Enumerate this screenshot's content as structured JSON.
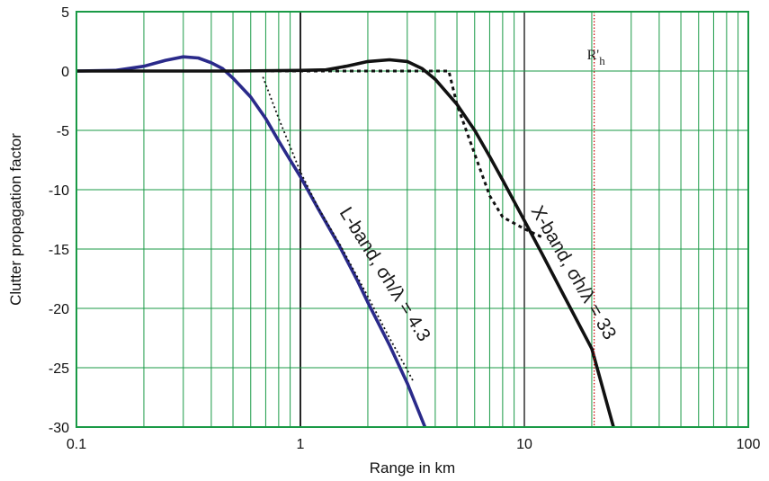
{
  "chart_data": {
    "type": "line",
    "title": "",
    "xlabel": "Range in km",
    "ylabel": "Clutter propagation factor",
    "x_scale": "log",
    "xlim": [
      0.1,
      100
    ],
    "ylim": [
      -30,
      5
    ],
    "x_ticks": [
      "0.1",
      "1",
      "10",
      "100"
    ],
    "y_ticks": [
      "5",
      "0",
      "-5",
      "-10",
      "-15",
      "-20",
      "-25",
      "-30"
    ],
    "grid": true,
    "colors": {
      "grid": "#1a9a46",
      "frame": "#1a9a46",
      "l_band": "#2a2a8a",
      "x_band": "#111111",
      "asymptote": "#111111",
      "marker": "#cc0000"
    },
    "annotations": {
      "marker_label": "R'h",
      "marker_x": 20.5,
      "l_band_label": "L-band, σh/λ = 4.3",
      "x_band_label": "X-band, σh/λ = 33"
    },
    "series": [
      {
        "style": "solid",
        "color": "#2a2a8a",
        "x": [
          0.1,
          0.15,
          0.2,
          0.25,
          0.3,
          0.35,
          0.4,
          0.45,
          0.5,
          0.6,
          0.7,
          0.8,
          0.9,
          1.0,
          1.2,
          1.5,
          1.8,
          2.0,
          2.5,
          3.0,
          3.6
        ],
        "y": [
          0,
          0.05,
          0.4,
          0.9,
          1.2,
          1.1,
          0.7,
          0.2,
          -0.6,
          -2.2,
          -4.0,
          -5.9,
          -7.5,
          -8.9,
          -11.6,
          -14.8,
          -17.7,
          -19.5,
          -23.1,
          -26.3,
          -30
        ]
      },
      {
        "style": "solid",
        "color": "#111111",
        "x": [
          0.1,
          0.5,
          1.0,
          1.3,
          1.6,
          2.0,
          2.5,
          3.0,
          3.5,
          4.0,
          5.0,
          6.0,
          7.0,
          8.0,
          10,
          12,
          15,
          20,
          25
        ],
        "y": [
          0,
          0,
          0.05,
          0.1,
          0.4,
          0.8,
          0.95,
          0.8,
          0.2,
          -0.7,
          -2.8,
          -5.0,
          -7.2,
          -9.2,
          -12.6,
          -15.4,
          -18.9,
          -23.4,
          -30
        ]
      },
      {
        "style": "dotted",
        "color": "#111111",
        "x": [
          0.68,
          0.8,
          1.0,
          1.2,
          1.5,
          2.0,
          2.5,
          3.0,
          3.2
        ],
        "y": [
          -0.5,
          -4.0,
          -8.5,
          -11.5,
          -14.6,
          -19.0,
          -22.5,
          -25.2,
          -26.2
        ]
      },
      {
        "style": "dashed",
        "color": "#111111",
        "x": [
          0.1,
          1.0,
          2.0,
          3.0,
          4.0,
          4.6,
          5.0,
          6.0,
          7.0,
          8.0,
          10,
          12
        ],
        "y": [
          0,
          0,
          0,
          0,
          0,
          0,
          -2.8,
          -7.0,
          -10.5,
          -12.3,
          -13.3,
          -14.0
        ]
      }
    ]
  }
}
